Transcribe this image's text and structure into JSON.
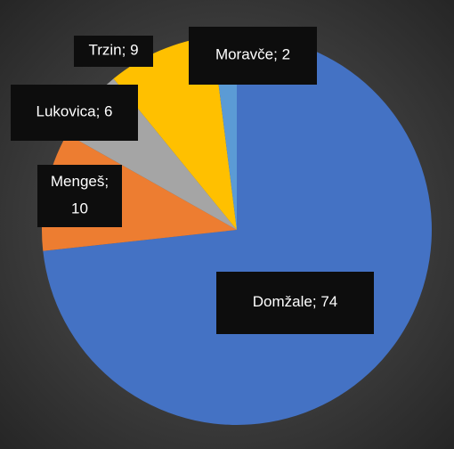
{
  "chart_data": {
    "type": "pie",
    "categories": [
      "Domžale",
      "Mengeš",
      "Lukovica",
      "Trzin",
      "Moravče"
    ],
    "values": [
      74,
      10,
      6,
      9,
      2
    ],
    "colors": [
      "#4472c4",
      "#ed7d31",
      "#a5a5a5",
      "#ffc000",
      "#5b9bd5"
    ],
    "label_separator": "; "
  }
}
